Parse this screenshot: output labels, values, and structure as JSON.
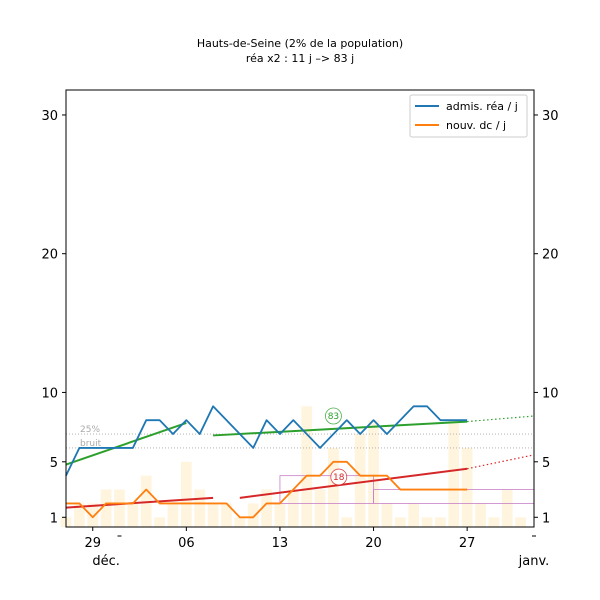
{
  "chart_data": {
    "type": "line",
    "title": "Hauts-de-Seine (2% de la population)",
    "subtitle": "réa x2 : 11 j –> 83 j",
    "x_ticks": [
      {
        "day": 0,
        "label": "29"
      },
      {
        "day": 7,
        "label": "06"
      },
      {
        "day": 14,
        "label": "13"
      },
      {
        "day": 21,
        "label": "20"
      },
      {
        "day": 28,
        "label": "27"
      }
    ],
    "x_month_labels": [
      {
        "day": 1,
        "label": "déc."
      },
      {
        "day": 33,
        "label": "janv."
      }
    ],
    "x_minor_dash_days": [
      2,
      33
    ],
    "xlim": [
      -2,
      33
    ],
    "ylim": [
      0.3,
      31.8
    ],
    "y_ticks": [
      1,
      5,
      10,
      20,
      30
    ],
    "legend_position": "top-right",
    "threshold_lines": [
      {
        "label": "25%",
        "value": 7
      },
      {
        "label": "bruit",
        "value": 6
      }
    ],
    "series": [
      {
        "name": "admis. réa / j",
        "color": "#1f77b4",
        "x": [
          -2,
          -1,
          0,
          1,
          2,
          3,
          4,
          5,
          6,
          7,
          8,
          9,
          10,
          11,
          12,
          13,
          14,
          15,
          16,
          17,
          18,
          19,
          20,
          21,
          22,
          23,
          24,
          25,
          26,
          27,
          28
        ],
        "values": [
          4,
          6,
          6,
          6,
          6,
          6,
          8,
          8,
          7,
          8,
          7,
          9,
          8,
          7,
          6,
          8,
          7,
          8,
          7,
          6,
          7,
          8,
          7,
          8,
          7,
          8,
          9,
          9,
          8,
          8,
          8
        ]
      },
      {
        "name": "nouv. dc / j",
        "color": "#ff7f0e",
        "x": [
          -2,
          -1,
          0,
          1,
          2,
          3,
          4,
          5,
          6,
          7,
          8,
          9,
          10,
          11,
          12,
          13,
          14,
          15,
          16,
          17,
          18,
          19,
          20,
          21,
          22,
          23,
          24,
          25,
          26,
          27,
          28
        ],
        "values": [
          2,
          2,
          1,
          2,
          2,
          2,
          3,
          2,
          2,
          2,
          2,
          2,
          2,
          1,
          1,
          2,
          2,
          3,
          4,
          4,
          5,
          5,
          4,
          4,
          4,
          3,
          3,
          3,
          3,
          3,
          3
        ]
      }
    ],
    "trend_lines": [
      {
        "color": "#2ca02c",
        "x": [
          -2,
          7
        ],
        "values": [
          4.8,
          7.8
        ]
      },
      {
        "color": "#2ca02c",
        "x": [
          9,
          28
        ],
        "values": [
          6.9,
          7.9
        ]
      },
      {
        "color": "#2ca02c",
        "dotted": true,
        "x": [
          28,
          33
        ],
        "values": [
          7.9,
          8.3
        ]
      },
      {
        "color": "#d62728",
        "x": [
          -2,
          9
        ],
        "values": [
          1.7,
          2.4
        ]
      },
      {
        "color": "#d62728",
        "x": [
          11,
          28
        ],
        "values": [
          2.4,
          4.5
        ]
      },
      {
        "color": "#d62728",
        "dotted": true,
        "x": [
          28,
          33
        ],
        "values": [
          4.5,
          5.5
        ]
      }
    ],
    "annotations": [
      {
        "text": "83",
        "color": "#2ca02c",
        "x": 18,
        "y": 8.3
      },
      {
        "text": "18",
        "color": "#d62728",
        "x": 18.4,
        "y": 3.9
      }
    ],
    "background_bars": {
      "color": "#ffedc8",
      "x": [
        -2,
        -1,
        0,
        1,
        2,
        3,
        4,
        5,
        6,
        7,
        8,
        9,
        10,
        11,
        12,
        13,
        14,
        15,
        16,
        17,
        18,
        19,
        20,
        21,
        22,
        23,
        24,
        25,
        26,
        27,
        28,
        29,
        30,
        31,
        32
      ],
      "values": [
        1,
        2,
        2,
        3,
        3,
        2,
        4,
        1,
        2,
        5,
        3,
        2,
        2,
        1,
        2,
        3,
        2,
        3,
        9,
        3,
        6,
        1,
        7,
        8,
        2,
        1,
        2,
        1,
        1,
        8,
        6,
        2,
        1,
        3,
        1
      ]
    },
    "brackets": [
      {
        "color": "#c880c8",
        "x": [
          14,
          21
        ],
        "y": [
          2,
          4
        ]
      },
      {
        "color": "#c880c8",
        "x": [
          21,
          33
        ],
        "y": [
          2,
          3
        ]
      }
    ]
  }
}
